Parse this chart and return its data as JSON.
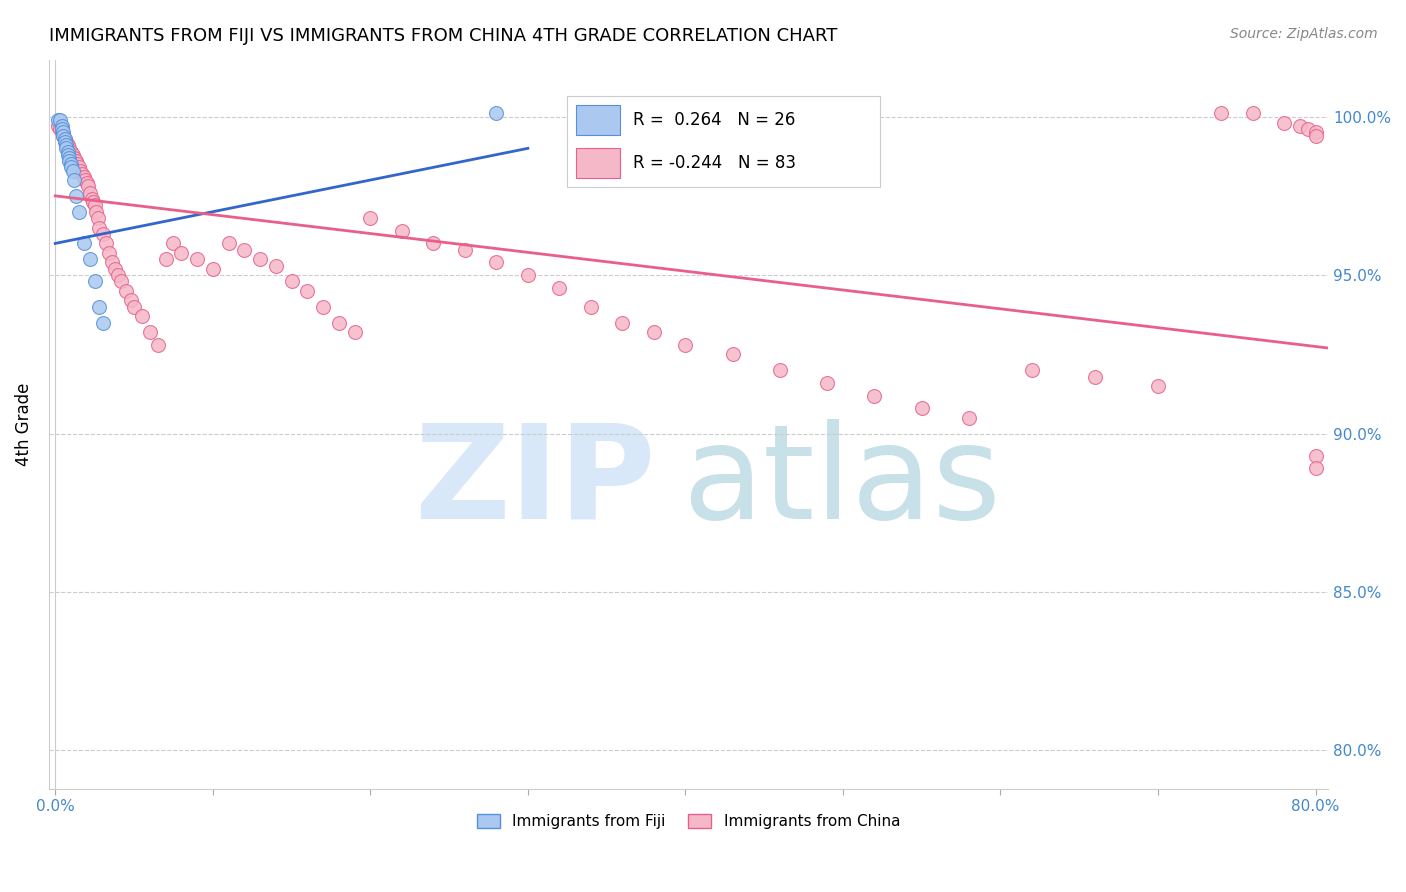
{
  "title": "IMMIGRANTS FROM FIJI VS IMMIGRANTS FROM CHINA 4TH GRADE CORRELATION CHART",
  "source_text": "Source: ZipAtlas.com",
  "ylabel": "4th Grade",
  "ytick_labels": [
    "100.0%",
    "95.0%",
    "90.0%",
    "85.0%",
    "80.0%"
  ],
  "ytick_values": [
    1.0,
    0.95,
    0.9,
    0.85,
    0.8
  ],
  "ylim": [
    0.788,
    1.018
  ],
  "xlim": [
    -0.004,
    0.808
  ],
  "fiji_color": "#aac8f0",
  "china_color": "#f5b8c8",
  "fiji_edge_color": "#5590d8",
  "china_edge_color": "#e8608a",
  "fiji_line_color": "#3366cc",
  "china_line_color": "#e8608a",
  "fiji_R": 0.264,
  "fiji_N": 26,
  "china_R": -0.244,
  "china_N": 83,
  "fiji_line_x": [
    0.0,
    0.3
  ],
  "fiji_line_y": [
    0.96,
    0.99
  ],
  "china_line_x": [
    0.0,
    0.808
  ],
  "china_line_y": [
    0.975,
    0.927
  ],
  "fiji_scatter_x": [
    0.002,
    0.003,
    0.004,
    0.004,
    0.005,
    0.005,
    0.006,
    0.006,
    0.007,
    0.007,
    0.008,
    0.008,
    0.009,
    0.009,
    0.01,
    0.01,
    0.011,
    0.012,
    0.013,
    0.015,
    0.018,
    0.022,
    0.025,
    0.028,
    0.03,
    0.28
  ],
  "fiji_scatter_y": [
    0.999,
    0.999,
    0.997,
    0.996,
    0.995,
    0.994,
    0.993,
    0.992,
    0.991,
    0.99,
    0.989,
    0.988,
    0.987,
    0.986,
    0.985,
    0.984,
    0.983,
    0.98,
    0.975,
    0.97,
    0.96,
    0.955,
    0.948,
    0.94,
    0.935,
    1.001
  ],
  "china_scatter_x": [
    0.002,
    0.003,
    0.004,
    0.005,
    0.006,
    0.007,
    0.008,
    0.009,
    0.01,
    0.011,
    0.012,
    0.013,
    0.014,
    0.015,
    0.016,
    0.017,
    0.018,
    0.019,
    0.02,
    0.021,
    0.022,
    0.023,
    0.024,
    0.025,
    0.026,
    0.027,
    0.028,
    0.03,
    0.032,
    0.034,
    0.036,
    0.038,
    0.04,
    0.042,
    0.045,
    0.048,
    0.05,
    0.055,
    0.06,
    0.065,
    0.07,
    0.075,
    0.08,
    0.09,
    0.1,
    0.11,
    0.12,
    0.13,
    0.14,
    0.15,
    0.16,
    0.17,
    0.18,
    0.19,
    0.2,
    0.22,
    0.24,
    0.26,
    0.28,
    0.3,
    0.32,
    0.34,
    0.36,
    0.38,
    0.4,
    0.43,
    0.46,
    0.49,
    0.52,
    0.55,
    0.58,
    0.62,
    0.66,
    0.7,
    0.74,
    0.76,
    0.78,
    0.79,
    0.795,
    0.8,
    0.8,
    0.8,
    0.8
  ],
  "china_scatter_y": [
    0.997,
    0.996,
    0.995,
    0.994,
    0.993,
    0.992,
    0.991,
    0.99,
    0.989,
    0.988,
    0.987,
    0.986,
    0.985,
    0.984,
    0.983,
    0.982,
    0.981,
    0.98,
    0.979,
    0.978,
    0.976,
    0.974,
    0.973,
    0.972,
    0.97,
    0.968,
    0.965,
    0.963,
    0.96,
    0.957,
    0.954,
    0.952,
    0.95,
    0.948,
    0.945,
    0.942,
    0.94,
    0.937,
    0.932,
    0.928,
    0.955,
    0.96,
    0.957,
    0.955,
    0.952,
    0.96,
    0.958,
    0.955,
    0.953,
    0.948,
    0.945,
    0.94,
    0.935,
    0.932,
    0.968,
    0.964,
    0.96,
    0.958,
    0.954,
    0.95,
    0.946,
    0.94,
    0.935,
    0.932,
    0.928,
    0.925,
    0.92,
    0.916,
    0.912,
    0.908,
    0.905,
    0.92,
    0.918,
    0.915,
    1.001,
    1.001,
    0.998,
    0.997,
    0.996,
    0.995,
    0.994,
    0.893,
    0.889
  ],
  "legend_fiji_text": "R =  0.264   N = 26",
  "legend_china_text": "R = -0.244   N = 83",
  "watermark_zip_color": "#d8e8f8",
  "watermark_atlas_color": "#c8e0e8",
  "grid_color": "#cccccc",
  "axis_label_color": "#4488cc",
  "title_fontsize": 13,
  "tick_fontsize": 11,
  "legend_fontsize": 12,
  "marker_size": 100
}
